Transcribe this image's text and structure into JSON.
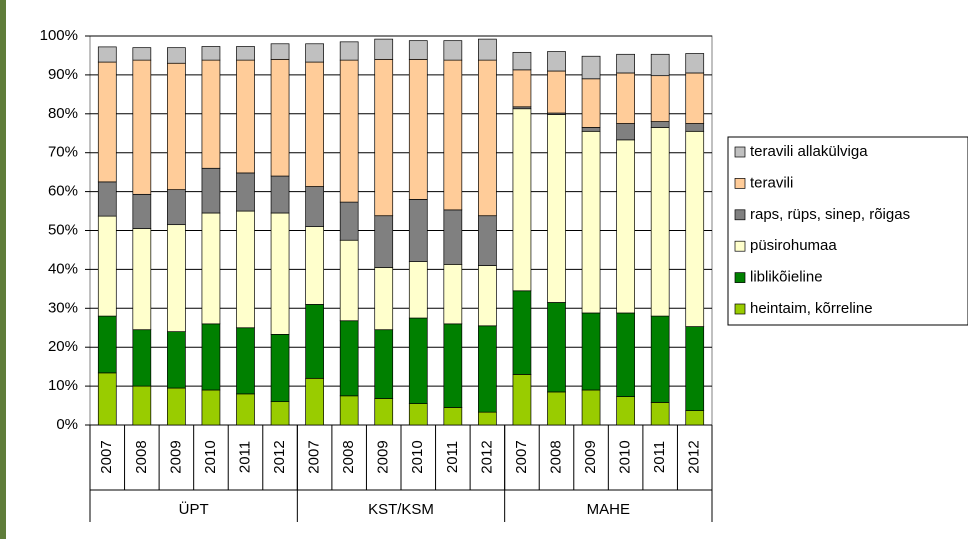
{
  "chart_data": {
    "type": "stacked_bar",
    "categories": [
      "2007",
      "2008",
      "2009",
      "2010",
      "2011",
      "2012",
      "2007",
      "2008",
      "2009",
      "2010",
      "2011",
      "2012",
      "2007",
      "2008",
      "2009",
      "2010",
      "2011",
      "2012"
    ],
    "groups": [
      "ÜPT",
      "KST/KSM",
      "MAHE"
    ],
    "series": [
      {
        "name": "heintaim, kõrreline",
        "color": "#99cc00",
        "values": [
          13.4,
          10,
          9.5,
          9,
          8,
          6,
          12,
          7.5,
          6.8,
          5.5,
          4.5,
          3.3,
          13,
          8.5,
          9,
          7.3,
          5.8,
          3.7
        ]
      },
      {
        "name": "liblikõieline",
        "color": "#008000",
        "values": [
          14.6,
          14.5,
          14.5,
          17,
          17,
          17.3,
          19,
          19.3,
          17.7,
          22,
          21.5,
          22.2,
          21.5,
          23,
          19.8,
          21.5,
          22.2,
          21.6
        ]
      },
      {
        "name": "püsirohumaa",
        "color": "#ffffcc",
        "values": [
          25.7,
          26,
          27.5,
          28.5,
          30,
          31.2,
          20,
          20.7,
          16,
          14.5,
          15.3,
          15.5,
          46.8,
          48.3,
          46.7,
          44.5,
          48.5,
          50.2
        ]
      },
      {
        "name": "raps, rüps, sinep, rõigas",
        "color": "#808080",
        "values": [
          8.8,
          8.8,
          9,
          11.5,
          9.8,
          9.5,
          10.3,
          9.8,
          13.3,
          16,
          14,
          12.8,
          0.5,
          0.4,
          1,
          4.2,
          1.5,
          2
        ]
      },
      {
        "name": "teravili",
        "color": "#ffcc99",
        "values": [
          30.8,
          34.5,
          32.5,
          27.8,
          29,
          30,
          32,
          36.5,
          40.2,
          36,
          38.5,
          40,
          9.5,
          10.8,
          12.5,
          13,
          11.8,
          13
        ]
      },
      {
        "name": "teravili allakülviga",
        "color": "#c0c0c0",
        "values": [
          3.9,
          3.2,
          4,
          3.5,
          3.5,
          4,
          4.7,
          4.7,
          5.2,
          4.8,
          5,
          5.4,
          4.5,
          5,
          5.8,
          4.8,
          5.5,
          5
        ]
      }
    ],
    "ylim": [
      0,
      100
    ],
    "yticks": [
      {
        "value": 0,
        "label": "0%"
      },
      {
        "value": 10,
        "label": "10%"
      },
      {
        "value": 20,
        "label": "20%"
      },
      {
        "value": 30,
        "label": "30%"
      },
      {
        "value": 40,
        "label": "40%"
      },
      {
        "value": 50,
        "label": "50%"
      },
      {
        "value": 60,
        "label": "60%"
      },
      {
        "value": 70,
        "label": "70%"
      },
      {
        "value": 80,
        "label": "80%"
      },
      {
        "value": 90,
        "label": "90%"
      },
      {
        "value": 100,
        "label": "100%"
      }
    ],
    "grid": true
  }
}
